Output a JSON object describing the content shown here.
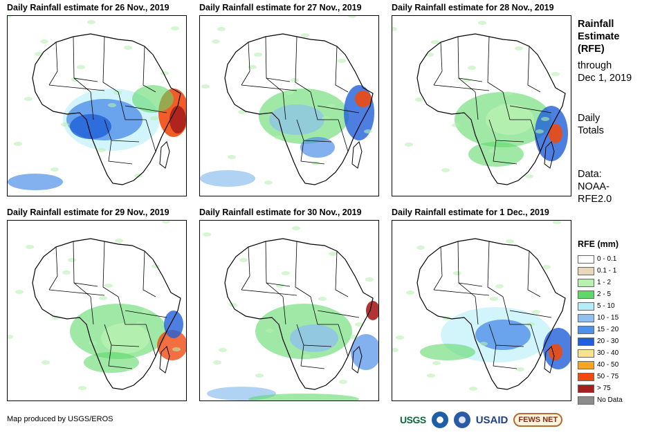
{
  "panels": [
    {
      "title": "Daily Rainfall estimate for 26 Nov., 2019"
    },
    {
      "title": "Daily Rainfall estimate for 27 Nov., 2019"
    },
    {
      "title": "Daily Rainfall estimate for 28 Nov., 2019"
    },
    {
      "title": "Daily Rainfall estimate for 29 Nov., 2019"
    },
    {
      "title": "Daily Rainfall estimate for 30 Nov., 2019"
    },
    {
      "title": "Daily Rainfall estimate for 1 Dec., 2019"
    }
  ],
  "side_info": {
    "title_line1": "Rainfall",
    "title_line2": "Estimate",
    "title_line3": "(RFE)",
    "through_line1": "through",
    "through_line2": "Dec 1, 2019",
    "totals_line1": "Daily",
    "totals_line2": "Totals",
    "data_line1": "Data:",
    "data_line2": "NOAA-",
    "data_line3": "RFE2.0"
  },
  "legend": {
    "title": "RFE (mm)",
    "items": [
      {
        "label": "0 - 0.1",
        "color": "#ffffff"
      },
      {
        "label": "0.1 - 1",
        "color": "#e8d7b8"
      },
      {
        "label": "1 - 2",
        "color": "#b8f0b0"
      },
      {
        "label": "2 - 5",
        "color": "#5fd96a"
      },
      {
        "label": "5 - 10",
        "color": "#b4ecf8"
      },
      {
        "label": "10 - 15",
        "color": "#8fc0f0"
      },
      {
        "label": "15 - 20",
        "color": "#4f90e8"
      },
      {
        "label": "20 - 30",
        "color": "#1f5fd8"
      },
      {
        "label": "30 - 40",
        "color": "#f8e38a"
      },
      {
        "label": "40 - 50",
        "color": "#f5a623"
      },
      {
        "label": "50 - 75",
        "color": "#f04a10"
      },
      {
        "label": "> 75",
        "color": "#a81e1e"
      },
      {
        "label": "No Data",
        "color": "#8c8c8c"
      }
    ]
  },
  "footer": {
    "credit": "Map produced by USGS/EROS",
    "logo_usgs": "USGS",
    "logo_usaid": "USAID",
    "logo_fews": "FEWS NET"
  }
}
